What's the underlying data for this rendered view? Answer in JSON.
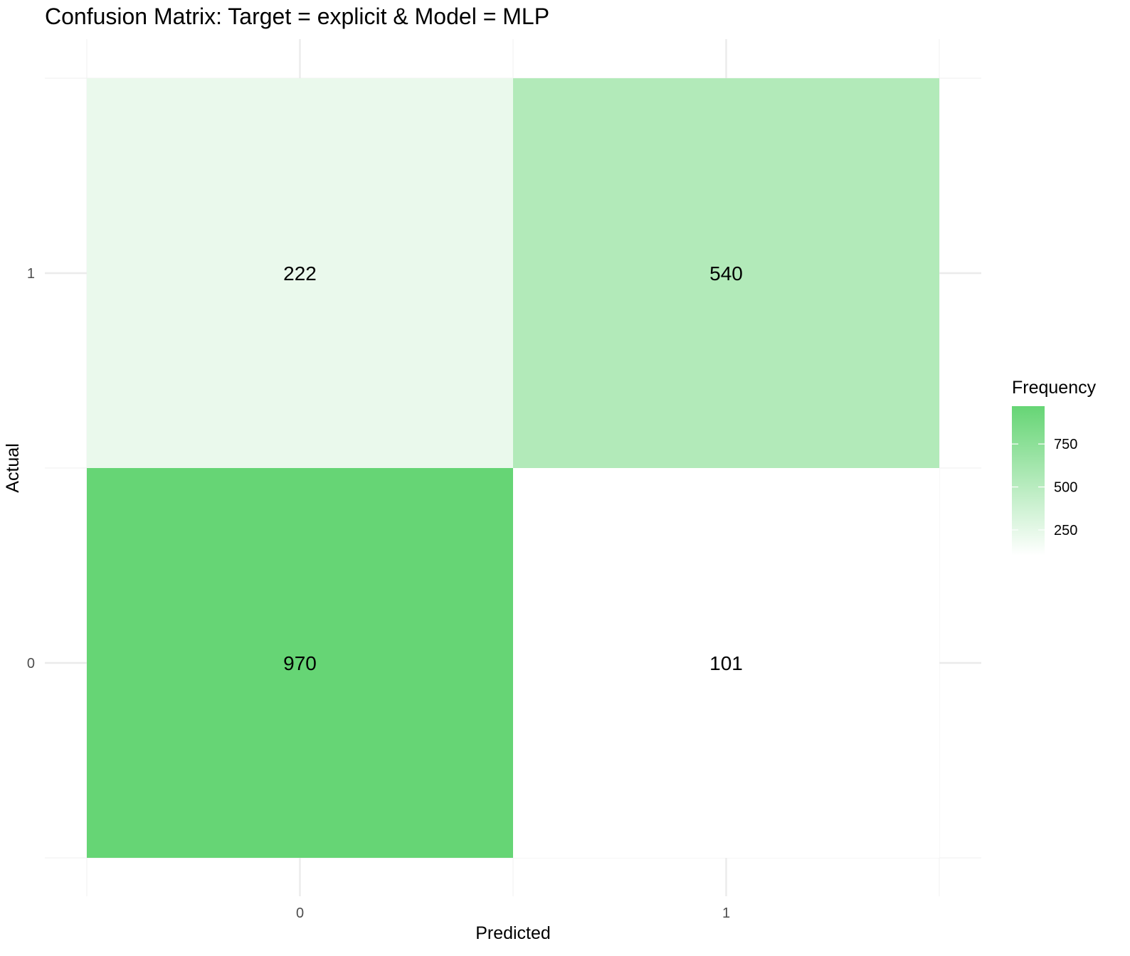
{
  "chart_data": {
    "type": "heatmap",
    "title": "Confusion Matrix: Target = explicit & Model = MLP",
    "xlabel": "Predicted",
    "ylabel": "Actual",
    "x_categories": [
      "0",
      "1"
    ],
    "y_categories": [
      "0",
      "1"
    ],
    "cells": [
      {
        "predicted": "0",
        "actual": "1",
        "value": 222
      },
      {
        "predicted": "1",
        "actual": "1",
        "value": 540
      },
      {
        "predicted": "0",
        "actual": "0",
        "value": 970
      },
      {
        "predicted": "1",
        "actual": "0",
        "value": 101
      }
    ],
    "color_scale": {
      "low": "#ffffff",
      "high": "#66d575",
      "min": 101,
      "max": 970
    },
    "legend": {
      "title": "Frequency",
      "placement": "right",
      "ticks": [
        250,
        500,
        750
      ]
    },
    "grid": true
  }
}
